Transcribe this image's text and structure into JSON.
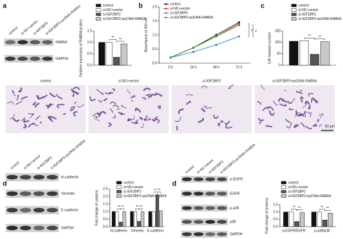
{
  "panel_labels": [
    "a",
    "b",
    "c",
    "d",
    "d"
  ],
  "blots": [
    {
      "lanes": [
        "control",
        "si-NC+vector",
        "si-IGF2BP2",
        "si-IGF2BP2+pcDNA-RAB5A"
      ],
      "bands": [
        "RAB5A",
        "GAPDH"
      ]
    },
    {
      "lanes": [
        "control",
        "si-NC+vector",
        "si-IGF2BP2",
        "si-IGF2BP2+pcDNA-RAB5A"
      ],
      "bands": [
        "N-cadherin",
        "Vimentin",
        "E-cadherin",
        "GAPDH"
      ]
    },
    {
      "lanes": [
        "control",
        "si-NC+vector",
        "si-IGF2BP2",
        "si-IGF2BP2+pcDNA-RAB5A"
      ],
      "bands": [
        "p-EGFR",
        "EGFR",
        "p-p38",
        "p38",
        "GAPDH"
      ]
    }
  ],
  "micrographs": {
    "labels": [
      "control",
      "si-NC+vector",
      "si-IGF2BP2",
      "si-IGF2BP2+pcDNA-RAB5A"
    ],
    "scale_bar": "50 μm"
  },
  "chart_data": [
    {
      "type": "bar",
      "ylabel": "Relative expression of RAB5A protein",
      "categories": [
        null
      ],
      "series": [
        {
          "name": "control",
          "color": "#111111",
          "values": [
            1.0
          ]
        },
        {
          "name": "si-NC+vector",
          "color": "#ffffff",
          "values": [
            1.0
          ]
        },
        {
          "name": "si-IGF2BP2",
          "color": "#555555",
          "values": [
            0.35
          ]
        },
        {
          "name": "si-IGF2BP2+pcDNA-RAB5A",
          "color": "#c8c8c8",
          "values": [
            0.93
          ]
        }
      ],
      "ylim": [
        0,
        1.5
      ],
      "yticks": [
        {
          "value": 0,
          "label": "0.0"
        },
        0.5,
        {
          "value": 1,
          "label": "1.0"
        },
        1.5
      ],
      "annotations": [
        "**",
        "**"
      ]
    },
    {
      "type": "line",
      "ylabel": "Absorbance at 450 nm",
      "categories": [
        "0 h",
        "24 h",
        "48 h",
        "72 h"
      ],
      "series": [
        {
          "name": "control",
          "color": "#111111",
          "values": [
            0.2,
            0.55,
            1.0,
            1.45
          ]
        },
        {
          "name": "si-NC+vector",
          "color": "#e0201b",
          "values": [
            0.2,
            0.55,
            0.95,
            1.4
          ]
        },
        {
          "name": "si-IGF2BP2",
          "color": "#2a7fd4",
          "values": [
            0.2,
            0.4,
            0.65,
            0.95
          ]
        },
        {
          "name": "si-IGF2BP2+pcDNA-RAB5A",
          "color": "#2e9e3e",
          "values": [
            0.2,
            0.55,
            0.95,
            1.35
          ]
        }
      ],
      "ylim": [
        0,
        2
      ],
      "yticks": [
        {
          "value": 0,
          "label": "0.0"
        },
        0.5,
        {
          "value": 1,
          "label": "1.0"
        },
        1.5,
        {
          "value": 2,
          "label": "2.0"
        }
      ],
      "annotations": [
        "**",
        "**"
      ]
    },
    {
      "type": "bar",
      "ylabel": "Cell invasion number",
      "categories": [
        null
      ],
      "series": [
        {
          "name": "control",
          "color": "#111111",
          "values": [
            105
          ]
        },
        {
          "name": "si-NC+vector",
          "color": "#ffffff",
          "values": [
            107
          ]
        },
        {
          "name": "si-IGF2BP2",
          "color": "#555555",
          "values": [
            48
          ]
        },
        {
          "name": "si-IGF2BP2+pcDNA-RAB5A",
          "color": "#c8c8c8",
          "values": [
            103
          ]
        }
      ],
      "ylim": [
        0,
        150
      ],
      "yticks": [
        0,
        50,
        100,
        150
      ],
      "annotations": [
        "**",
        "**"
      ]
    },
    {
      "type": "bar",
      "ylabel": "Fold change of proteins",
      "categories": [
        "N-cadherin",
        "Vimentin",
        "E-cadherin"
      ],
      "series": [
        {
          "name": "control",
          "color": "#111111",
          "values": [
            1.0,
            1.0,
            1.0
          ]
        },
        {
          "name": "si-NC+vector",
          "color": "#ffffff",
          "values": [
            1.0,
            1.0,
            1.0
          ]
        },
        {
          "name": "si-IGF2BP2",
          "color": "#555555",
          "values": [
            0.3,
            0.35,
            2.1
          ]
        },
        {
          "name": "si-IGF2BP2+pcDNA-RAB5A",
          "color": "#c8c8c8",
          "values": [
            1.0,
            1.0,
            1.05
          ]
        }
      ],
      "ylim": [
        0,
        2.5
      ],
      "yticks": [
        {
          "value": 0,
          "label": "0.0"
        },
        0.5,
        {
          "value": 1,
          "label": "1.0"
        },
        1.5,
        {
          "value": 2,
          "label": "2.0"
        },
        2.5
      ],
      "annotations": [
        "**",
        "**",
        "**",
        "**",
        "**",
        "**"
      ]
    },
    {
      "type": "bar",
      "ylabel": "Fold change of proteins",
      "categories": [
        "p-EGFR/EGFR",
        "p-p38/p38"
      ],
      "series": [
        {
          "name": "control",
          "color": "#111111",
          "values": [
            1.0,
            1.0
          ]
        },
        {
          "name": "si-NC+vector",
          "color": "#ffffff",
          "values": [
            1.0,
            1.0
          ]
        },
        {
          "name": "si-IGF2BP2",
          "color": "#555555",
          "values": [
            0.35,
            0.45
          ]
        },
        {
          "name": "si-IGF2BP2+pcDNA-RAB5A",
          "color": "#c8c8c8",
          "values": [
            0.95,
            0.92
          ]
        }
      ],
      "ylim": [
        0,
        1.5
      ],
      "yticks": [
        {
          "value": 0,
          "label": "0.0"
        },
        0.5,
        {
          "value": 1,
          "label": "1.0"
        },
        1.5
      ],
      "annotations": [
        "**",
        "**",
        "**",
        "**"
      ]
    }
  ]
}
